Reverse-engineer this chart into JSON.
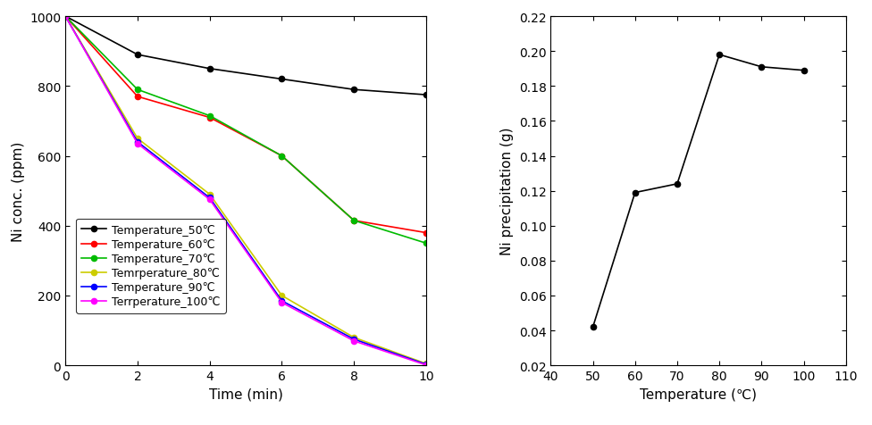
{
  "left_plot": {
    "xlabel": "Time (min)",
    "ylabel": "Ni conc. (ppm)",
    "xlim": [
      0,
      10
    ],
    "ylim": [
      0,
      1000
    ],
    "xticks": [
      0,
      2,
      4,
      6,
      8,
      10
    ],
    "yticks": [
      0,
      200,
      400,
      600,
      800,
      1000
    ],
    "legend_loc": "lower left",
    "series": [
      {
        "label": "Temperature_50℃",
        "color": "#000000",
        "marker": "o",
        "x": [
          0,
          2,
          4,
          6,
          8,
          10
        ],
        "y": [
          1000,
          890,
          850,
          820,
          790,
          775
        ]
      },
      {
        "label": "Temperature_60℃",
        "color": "#ff0000",
        "marker": "o",
        "x": [
          0,
          2,
          4,
          6,
          8,
          10
        ],
        "y": [
          1000,
          770,
          710,
          600,
          415,
          380
        ]
      },
      {
        "label": "Temperature_70℃",
        "color": "#00bb00",
        "marker": "o",
        "x": [
          0,
          2,
          4,
          6,
          8,
          10
        ],
        "y": [
          1000,
          790,
          715,
          600,
          415,
          350
        ]
      },
      {
        "label": "Temrperature_80℃",
        "color": "#cccc00",
        "marker": "o",
        "x": [
          0,
          2,
          4,
          6,
          8,
          10
        ],
        "y": [
          1000,
          650,
          490,
          200,
          80,
          5
        ]
      },
      {
        "label": "Temperature_90℃",
        "color": "#0000ff",
        "marker": "o",
        "x": [
          0,
          2,
          4,
          6,
          8,
          10
        ],
        "y": [
          1000,
          640,
          480,
          185,
          75,
          3
        ]
      },
      {
        "label": "Terrperature_100℃",
        "color": "#ff00ff",
        "marker": "o",
        "x": [
          0,
          2,
          4,
          6,
          8,
          10
        ],
        "y": [
          1000,
          635,
          475,
          180,
          70,
          1
        ]
      }
    ]
  },
  "right_plot": {
    "xlabel": "Temperature (℃)",
    "ylabel": "Ni precipitation (g)",
    "xlim": [
      40,
      110
    ],
    "ylim": [
      0.02,
      0.22
    ],
    "xticks": [
      40,
      50,
      60,
      70,
      80,
      90,
      100,
      110
    ],
    "yticks": [
      0.02,
      0.04,
      0.06,
      0.08,
      0.1,
      0.12,
      0.14,
      0.16,
      0.18,
      0.2,
      0.22
    ],
    "x": [
      50,
      60,
      70,
      80,
      90,
      100
    ],
    "y": [
      0.042,
      0.119,
      0.124,
      0.198,
      0.191,
      0.189
    ],
    "color": "#000000",
    "marker": "o"
  },
  "font_family": "DejaVu Sans",
  "font_size": 10,
  "axis_label_fontsize": 11,
  "legend_fontsize": 9,
  "tick_fontsize": 10,
  "figure_bg": "#ffffff"
}
